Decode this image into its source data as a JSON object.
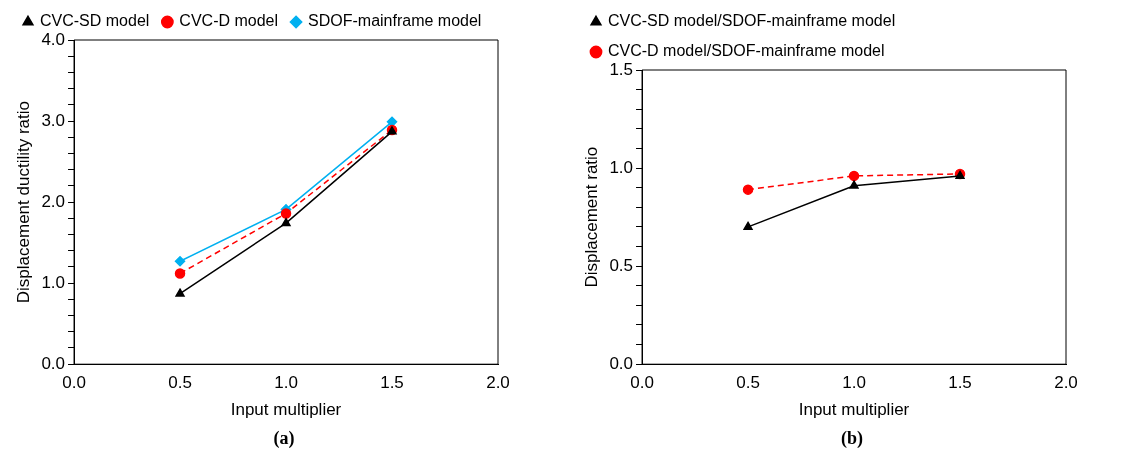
{
  "chart_data": [
    {
      "type": "line",
      "xlabel": "Input multiplier",
      "ylabel": "Displacement ductility ratio",
      "legend": "top",
      "grid": false,
      "annotations": [
        "(a)"
      ],
      "x": [
        0.5,
        1.0,
        1.5
      ],
      "xlim": [
        0,
        2
      ],
      "xticks": [
        {
          "value": 0,
          "label": "0.0"
        },
        {
          "value": 0.5,
          "label": "0.5"
        },
        {
          "value": 1,
          "label": "1.0"
        },
        {
          "value": 1.5,
          "label": "1.5"
        },
        {
          "value": 2,
          "label": "2.0"
        }
      ],
      "ylim": [
        0,
        4
      ],
      "yticks": [
        {
          "value": 0,
          "label": "0.0"
        },
        {
          "value": 0.2,
          "label": null
        },
        {
          "value": 0.4,
          "label": null
        },
        {
          "value": 0.6,
          "label": null
        },
        {
          "value": 0.8,
          "label": null
        },
        {
          "value": 1,
          "label": "1.0"
        },
        {
          "value": 1.2,
          "label": null
        },
        {
          "value": 1.4,
          "label": null
        },
        {
          "value": 1.6,
          "label": null
        },
        {
          "value": 1.8,
          "label": null
        },
        {
          "value": 2,
          "label": "2.0"
        },
        {
          "value": 2.2,
          "label": null
        },
        {
          "value": 2.4,
          "label": null
        },
        {
          "value": 2.6,
          "label": null
        },
        {
          "value": 2.8,
          "label": null
        },
        {
          "value": 3,
          "label": "3.0"
        },
        {
          "value": 3.2,
          "label": null
        },
        {
          "value": 3.4,
          "label": null
        },
        {
          "value": 3.6,
          "label": null
        },
        {
          "value": 3.8,
          "label": null
        },
        {
          "value": 4,
          "label": "4.0"
        }
      ],
      "series": [
        {
          "name": "CVC-SD model",
          "color": "#000000",
          "marker": "triangle",
          "line_style": "solid",
          "values": [
            0.87,
            1.74,
            2.87
          ]
        },
        {
          "name": "CVC-D model",
          "color": "#ff0000",
          "marker": "circle",
          "line_style": "dashed",
          "values": [
            1.12,
            1.86,
            2.89
          ]
        },
        {
          "name": "SDOF-mainframe model",
          "color": "#00b0f0",
          "marker": "diamond",
          "line_style": "solid",
          "values": [
            1.27,
            1.91,
            2.99
          ]
        }
      ]
    },
    {
      "type": "line",
      "xlabel": "Input multiplier",
      "ylabel": "Displacement ratio",
      "legend": "top",
      "grid": false,
      "annotations": [
        "(b)"
      ],
      "x": [
        0.5,
        1.0,
        1.5
      ],
      "xlim": [
        0,
        2
      ],
      "xticks": [
        {
          "value": 0,
          "label": "0.0"
        },
        {
          "value": 0.5,
          "label": "0.5"
        },
        {
          "value": 1,
          "label": "1.0"
        },
        {
          "value": 1.5,
          "label": "1.5"
        },
        {
          "value": 2,
          "label": "2.0"
        }
      ],
      "ylim": [
        0,
        1.5
      ],
      "yticks": [
        {
          "value": 0,
          "label": "0.0"
        },
        {
          "value": 0.1,
          "label": null
        },
        {
          "value": 0.2,
          "label": null
        },
        {
          "value": 0.3,
          "label": null
        },
        {
          "value": 0.4,
          "label": null
        },
        {
          "value": 0.5,
          "label": "0.5"
        },
        {
          "value": 0.6,
          "label": null
        },
        {
          "value": 0.7,
          "label": null
        },
        {
          "value": 0.8,
          "label": null
        },
        {
          "value": 0.9,
          "label": null
        },
        {
          "value": 1,
          "label": "1.0"
        },
        {
          "value": 1.1,
          "label": null
        },
        {
          "value": 1.2,
          "label": null
        },
        {
          "value": 1.3,
          "label": null
        },
        {
          "value": 1.4,
          "label": null
        },
        {
          "value": 1.5,
          "label": "1.5"
        }
      ],
      "series": [
        {
          "name": "CVC-SD model/SDOF-mainframe model",
          "color": "#000000",
          "marker": "triangle",
          "line_style": "solid",
          "values": [
            0.7,
            0.91,
            0.96
          ]
        },
        {
          "name": "CVC-D model/SDOF-mainframe model",
          "color": "#ff0000",
          "marker": "circle",
          "line_style": "dashed",
          "values": [
            0.89,
            0.96,
            0.97
          ]
        }
      ]
    }
  ]
}
